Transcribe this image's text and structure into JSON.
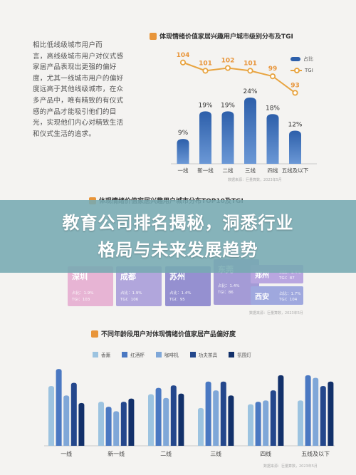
{
  "banner": {
    "line1": "教育公司排名揭秘，洞悉行业",
    "line2": "格局与未来发展趋势"
  },
  "section1": {
    "text_lines": [
      "相比低线级城市用户而",
      "言，高线级城市用户对仪式感",
      "家居产品表现出更强的偏好",
      "度，尤其一线城市用户的偏好",
      "度远高于其他线级城市，在众",
      "多产品中，唯有精致的有仪式",
      "感的产品才能吸引他们的目",
      "光，实现他们内心对精致生活",
      "和仪式生活的追求。"
    ],
    "source": "数据来源：巨量算数，2023年5月",
    "legend": {
      "bar": "占比",
      "line": "TGI"
    }
  },
  "section2": {
    "tiles": [
      {
        "city": "深圳",
        "share": "占比：1.9%",
        "tgi": "TGI：103",
        "color": "#e7b4d4"
      },
      {
        "city": "成都",
        "share": "占比：1.9%",
        "tgi": "TGI：106",
        "color": "#b1a6dc"
      },
      {
        "city": "苏州",
        "share": "占比：1.4%",
        "tgi": "TGI：95",
        "color": "#9590d0"
      },
      {
        "city": "东莞",
        "share": "占比：1.4%",
        "tgi": "TGI：86",
        "color": "#a49bd6"
      },
      {
        "city": "郑州",
        "share": "占比：1.4%",
        "tgi": "TGI：87",
        "color": "#b9a6e0"
      },
      {
        "city": "西安",
        "share": "占比：1.7%",
        "tgi": "TGI：104",
        "color": "#9fa8de"
      }
    ],
    "source": "数据来源：巨量算数，2023年5月"
  },
  "section3": {
    "source": "数据来源：巨量算数，2023年5月"
  },
  "chart_data": [
    {
      "type": "bar",
      "title": "体现情绪价值家居兴趣用户城市级别分布及TGI",
      "categories": [
        "一线",
        "新一线",
        "二线",
        "三线",
        "四线",
        "五线及以下"
      ],
      "series": [
        {
          "name": "占比",
          "type": "bar",
          "values": [
            9,
            19,
            19,
            24,
            18,
            12
          ],
          "labels": [
            "9%",
            "19%",
            "19%",
            "24%",
            "18%",
            "12%"
          ],
          "color": "#2d5faa"
        },
        {
          "name": "TGI",
          "type": "line",
          "values": [
            104,
            101,
            102,
            101,
            99,
            93
          ],
          "color": "#e8a440"
        }
      ],
      "ylim": [
        0,
        26
      ],
      "tgi_range": [
        90,
        106
      ]
    },
    {
      "type": "table",
      "title": "体现情绪价值家居兴趣用户城市分布TOP10及TGI"
    },
    {
      "type": "bar",
      "title": "不同年龄段用户对体现情绪价值家居产品偏好度",
      "categories": [
        "一线",
        "新一线",
        "二线",
        "三线",
        "四线",
        "五线及以下"
      ],
      "series": [
        {
          "name": "香薰",
          "values": [
            95,
            70,
            82,
            60,
            66,
            72
          ],
          "color": "#9cc3e0"
        },
        {
          "name": "红酒杯",
          "values": [
            122,
            62,
            92,
            102,
            70,
            112
          ],
          "color": "#4a78c2"
        },
        {
          "name": "咖啡机",
          "values": [
            80,
            55,
            76,
            88,
            72,
            108
          ],
          "color": "#7fa7d8"
        },
        {
          "name": "功夫茶具",
          "values": [
            100,
            70,
            96,
            102,
            88,
            95
          ],
          "color": "#24478c"
        },
        {
          "name": "氛围灯",
          "values": [
            68,
            75,
            83,
            80,
            112,
            102
          ],
          "color": "#12306a"
        }
      ],
      "ylim": [
        0,
        130
      ]
    }
  ]
}
